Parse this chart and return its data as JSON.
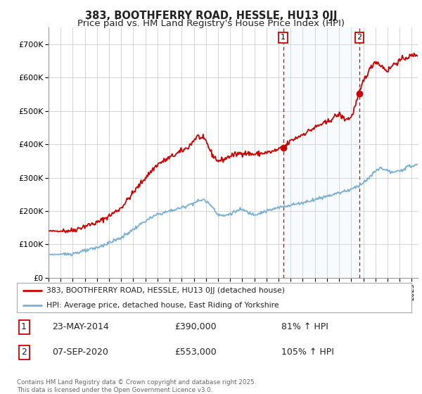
{
  "title": "383, BOOTHFERRY ROAD, HESSLE, HU13 0JJ",
  "subtitle": "Price paid vs. HM Land Registry's House Price Index (HPI)",
  "title_fontsize": 10.5,
  "subtitle_fontsize": 9.5,
  "background_color": "#ffffff",
  "plot_bg_color": "#ffffff",
  "grid_color": "#cccccc",
  "ylim": [
    0,
    750000
  ],
  "yticks": [
    0,
    100000,
    200000,
    300000,
    400000,
    500000,
    600000,
    700000
  ],
  "ytick_labels": [
    "£0",
    "£100K",
    "£200K",
    "£300K",
    "£400K",
    "£500K",
    "£600K",
    "£700K"
  ],
  "red_line_color": "#cc0000",
  "blue_line_color": "#7ab0d4",
  "annotation_bg": "#dce9f7",
  "annotation_border": "#cc0000",
  "sale1_x": 2014.39,
  "sale1_y": 390000,
  "sale2_x": 2020.68,
  "sale2_y": 553000,
  "legend_label_red": "383, BOOTHFERRY ROAD, HESSLE, HU13 0JJ (detached house)",
  "legend_label_blue": "HPI: Average price, detached house, East Riding of Yorkshire",
  "note1_date": "23-MAY-2014",
  "note1_price": "£390,000",
  "note1_hpi": "81% ↑ HPI",
  "note2_date": "07-SEP-2020",
  "note2_price": "£553,000",
  "note2_hpi": "105% ↑ HPI",
  "footer": "Contains HM Land Registry data © Crown copyright and database right 2025.\nThis data is licensed under the Open Government Licence v3.0.",
  "xmin": 1995,
  "xmax": 2025.5
}
